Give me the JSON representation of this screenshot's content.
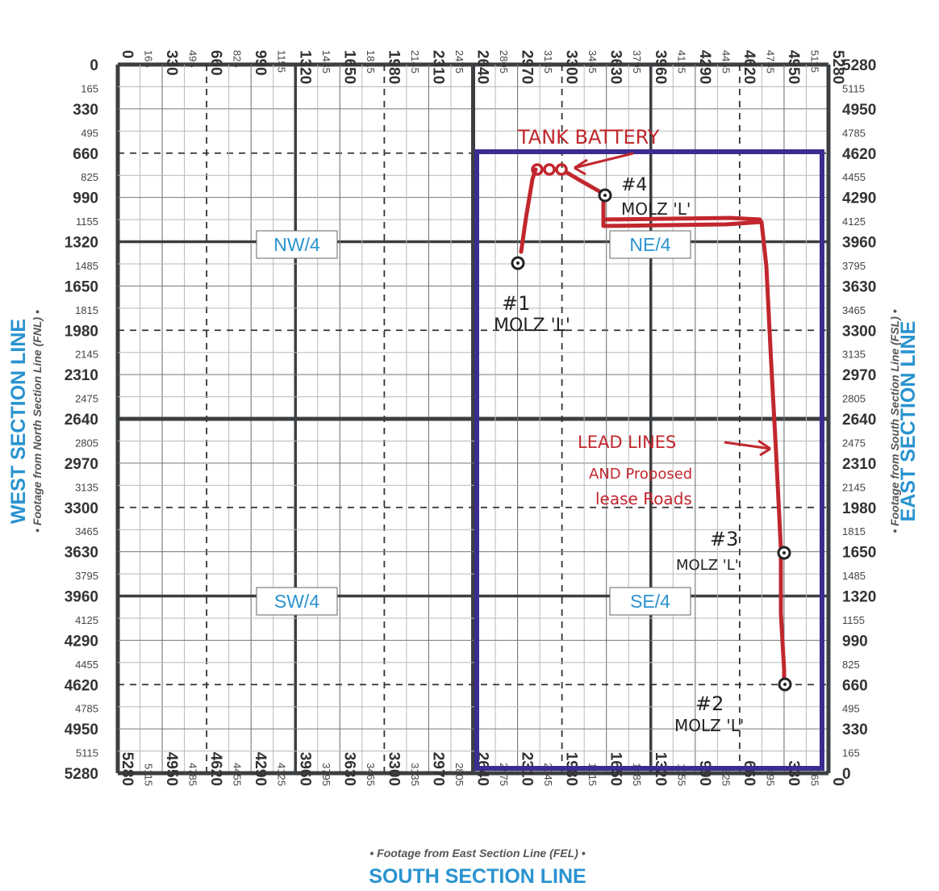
{
  "section_lines": {
    "west": "WEST SECTION LINE",
    "east": "EAST SECTION LINE",
    "south": "SOUTH SECTION LINE"
  },
  "axis_labels": {
    "fnl": "• Footage from North Section Line (FNL) •",
    "fsl": "• Footage from South Section Line (FSL) •",
    "fel": "• Footage from East Section Line (FEL) •"
  },
  "quarters": [
    "NW/4",
    "NE/4",
    "SW/4",
    "SE/4"
  ],
  "ticks": {
    "top": [
      "0",
      "165",
      "330",
      "495",
      "660",
      "825",
      "990",
      "1155",
      "1320",
      "1485",
      "1650",
      "1815",
      "1980",
      "2145",
      "2310",
      "2475",
      "2640",
      "2805",
      "2970",
      "3135",
      "3300",
      "3465",
      "3630",
      "3795",
      "3960",
      "4125",
      "4290",
      "4455",
      "4620",
      "4785",
      "4950",
      "5115",
      "5280"
    ],
    "left": [
      "0",
      "165",
      "330",
      "495",
      "660",
      "825",
      "990",
      "1155",
      "1320",
      "1485",
      "1650",
      "1815",
      "1980",
      "2145",
      "2310",
      "2475",
      "2640",
      "2805",
      "2970",
      "3135",
      "3300",
      "3465",
      "3630",
      "3795",
      "3960",
      "4125",
      "4290",
      "4455",
      "4620",
      "4785",
      "4950",
      "5115",
      "5280"
    ],
    "right": [
      "5280",
      "5115",
      "4950",
      "4785",
      "4620",
      "4455",
      "4290",
      "4125",
      "3960",
      "3795",
      "3630",
      "3465",
      "3300",
      "3135",
      "2970",
      "2805",
      "2640",
      "2475",
      "2310",
      "2145",
      "1980",
      "1815",
      "1650",
      "1485",
      "1320",
      "1155",
      "990",
      "825",
      "660",
      "495",
      "330",
      "165",
      "0"
    ],
    "bottom": [
      "5280",
      "5115",
      "4950",
      "4785",
      "4620",
      "4455",
      "4290",
      "4125",
      "3960",
      "3795",
      "3630",
      "3465",
      "3300",
      "3135",
      "2970",
      "2805",
      "2640",
      "2475",
      "2310",
      "2145",
      "1980",
      "1815",
      "1650",
      "1485",
      "1320",
      "1155",
      "990",
      "825",
      "660",
      "495",
      "330",
      "165",
      "0"
    ]
  },
  "annotations": {
    "tank_battery": "TANK BATTERY",
    "well_4": "#4",
    "well_1": "#1",
    "well_3": "#3",
    "well_2": "#2",
    "lease_name": "MOLZ 'L'",
    "lead_lines": "LEAD LINES",
    "proposed_1": "AND Proposed",
    "proposed_2": "lease Roads"
  },
  "colors": {
    "accent_blue": "#2a93d0",
    "lease_outline": "#3a2d8f",
    "annotation_red": "#c1272d"
  }
}
